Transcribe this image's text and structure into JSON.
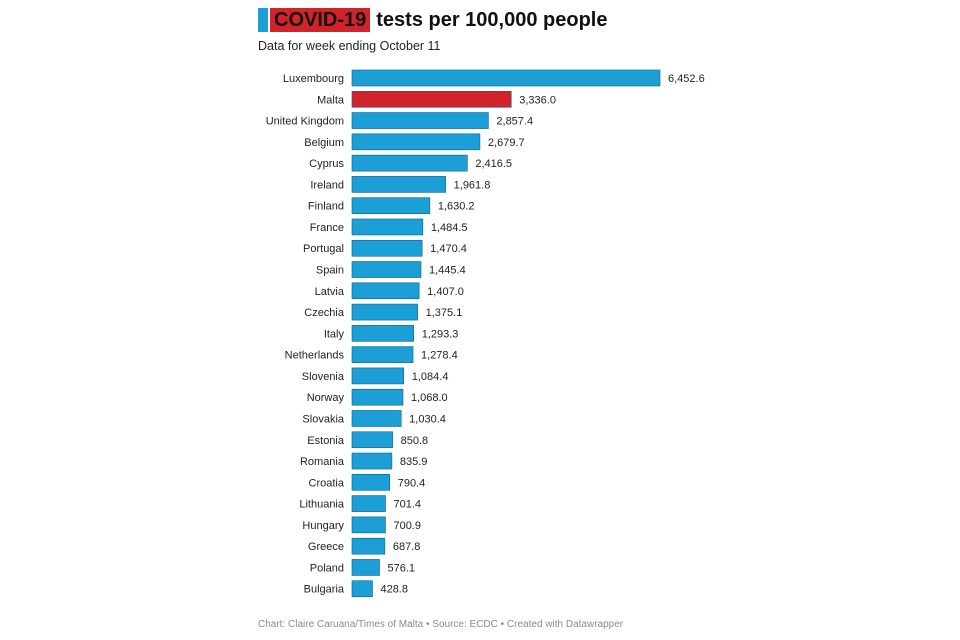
{
  "header": {
    "title_highlight": "COVID-19",
    "title_rest": "tests per 100,000 people",
    "subtitle": "Data for week ending October 11"
  },
  "footer": {
    "credit": "Chart: Claire Caruana/Times of Malta • Source: ECDC • Created with Datawrapper"
  },
  "colors": {
    "bar": "#1b9fd6",
    "highlight": "#d3232a",
    "bar_stroke": "#0f5f86"
  },
  "chart_data": {
    "type": "bar",
    "orientation": "horizontal",
    "title": "COVID-19 tests per 100,000 people",
    "subtitle": "Data for week ending October 11",
    "categories": [
      "Luxembourg",
      "Malta",
      "United Kingdom",
      "Belgium",
      "Cyprus",
      "Ireland",
      "Finland",
      "France",
      "Portugal",
      "Spain",
      "Latvia",
      "Czechia",
      "Italy",
      "Netherlands",
      "Slovenia",
      "Norway",
      "Slovakia",
      "Estonia",
      "Romania",
      "Croatia",
      "Lithuania",
      "Hungary",
      "Greece",
      "Poland",
      "Bulgaria"
    ],
    "values": [
      6452.6,
      3336.0,
      2857.4,
      2679.7,
      2416.5,
      1961.8,
      1630.2,
      1484.5,
      1470.4,
      1445.4,
      1407.0,
      1375.1,
      1293.3,
      1278.4,
      1084.4,
      1068.0,
      1030.4,
      850.8,
      835.9,
      790.4,
      701.4,
      700.9,
      687.8,
      576.1,
      428.8
    ],
    "value_labels": [
      "6,452.6",
      "3,336.0",
      "2,857.4",
      "2,679.7",
      "2,416.5",
      "1,961.8",
      "1,630.2",
      "1,484.5",
      "1,470.4",
      "1,445.4",
      "1,407.0",
      "1,375.1",
      "1,293.3",
      "1,278.4",
      "1,084.4",
      "1,068.0",
      "1,030.4",
      "850.8",
      "835.9",
      "790.4",
      "701.4",
      "700.9",
      "687.8",
      "576.1",
      "428.8"
    ],
    "highlight_category": "Malta",
    "xlim": [
      0,
      6452.6
    ],
    "grid": false,
    "legend": "none"
  }
}
